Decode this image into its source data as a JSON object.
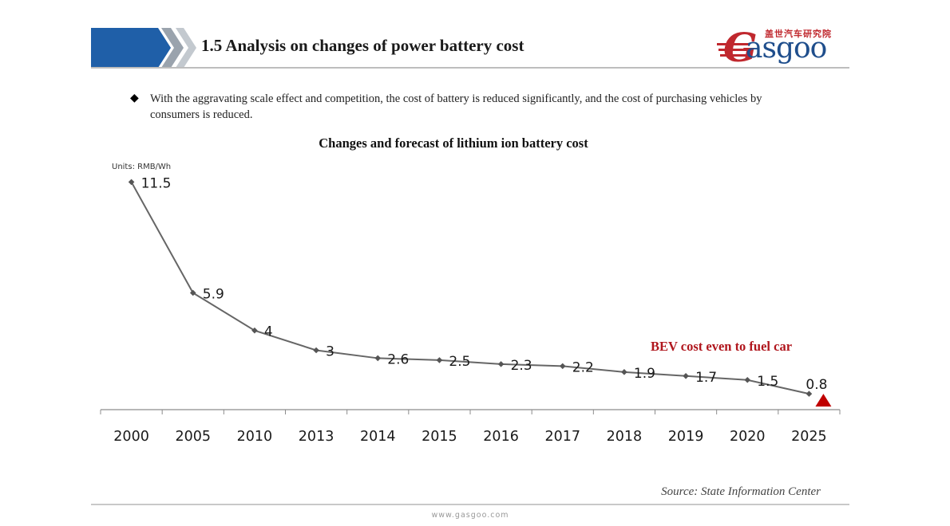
{
  "header": {
    "title": "1.5 Analysis on changes of power battery cost",
    "bar_color": "#1f5fa8"
  },
  "logo": {
    "cn_text": "盖世汽车研究院",
    "initial": "G",
    "word": "asgoo"
  },
  "bullet": {
    "text": "With the aggravating scale effect and competition,  the cost of battery is reduced significantly,  and the cost of purchasing vehicles by consumers is reduced."
  },
  "chart_data": {
    "type": "line",
    "title": "Changes and forecast of lithium ion battery cost",
    "units_label": "Units: RMB/Wh",
    "categories": [
      "2000",
      "2005",
      "2010",
      "2013",
      "2014",
      "2015",
      "2016",
      "2017",
      "2018",
      "2019",
      "2020",
      "2025"
    ],
    "series": [
      {
        "values": [
          11.5,
          5.9,
          4,
          3,
          2.6,
          2.5,
          2.3,
          2.2,
          1.9,
          1.7,
          1.5,
          0.8
        ],
        "labels": [
          "11.5",
          "5.9",
          "4",
          "3",
          "2.6",
          "2.5",
          "2.3",
          "2.2",
          "1.9",
          "1.7",
          "1.5",
          "0.8"
        ],
        "color": "#666666"
      }
    ],
    "ylim": [
      0,
      12
    ],
    "grid": false,
    "annotation": "BEV cost even to fuel car",
    "annotation_color": "#b0161d",
    "marker_color": "#c00000"
  },
  "source": "Source: State Information Center",
  "footer": {
    "url": "www.gasgoo.com"
  }
}
